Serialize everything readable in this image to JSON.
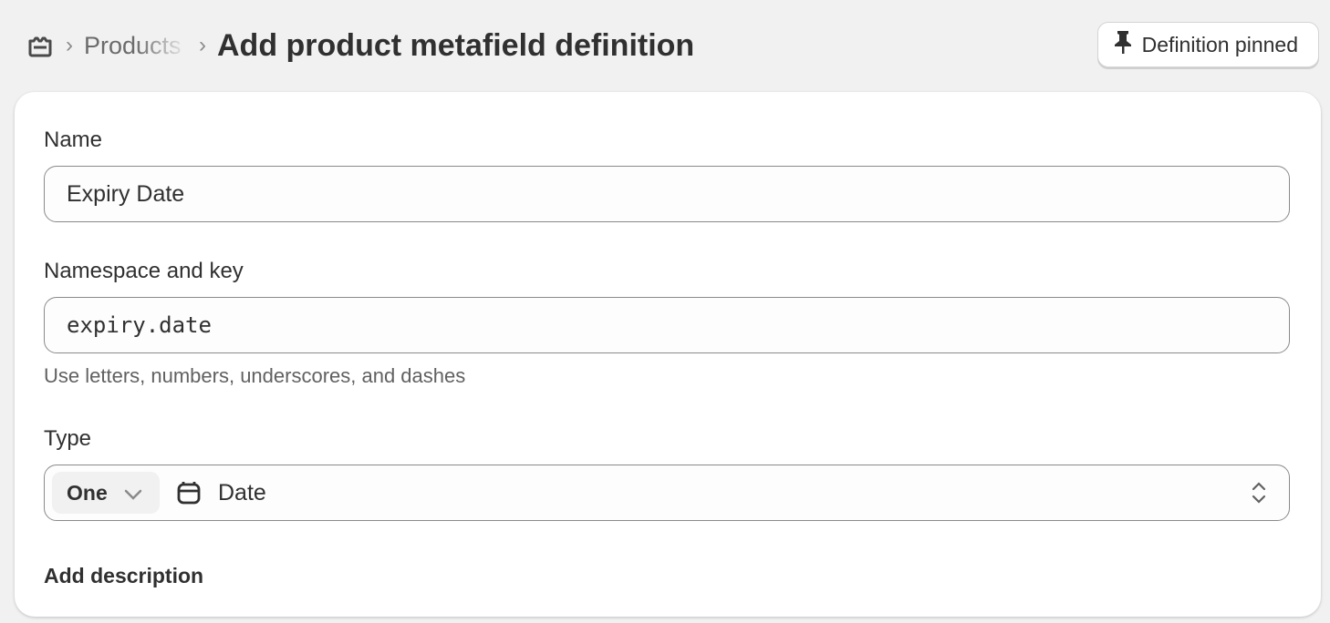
{
  "header": {
    "breadcrumb_icon": "metafield-icon",
    "breadcrumb_parent": "Products",
    "title": "Add product metafield definition",
    "pin_button": {
      "icon": "pin-icon",
      "label": "Definition pinned"
    }
  },
  "form": {
    "name": {
      "label": "Name",
      "value": "Expiry Date"
    },
    "namespace": {
      "label": "Namespace and key",
      "value": "expiry.date",
      "help": "Use letters, numbers, underscores, and dashes"
    },
    "type": {
      "label": "Type",
      "cardinality": "One",
      "type_icon": "calendar-icon",
      "value": "Date"
    },
    "add_description": "Add description"
  }
}
